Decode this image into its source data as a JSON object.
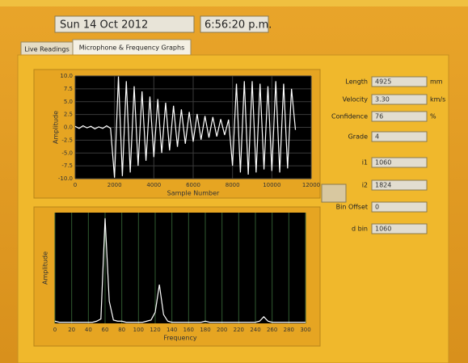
{
  "header": {
    "date": "Sun 14 Oct 2012",
    "time": "6:56:20 p.m."
  },
  "tabs": [
    "Live Readings",
    "Microphone & Frequency Graphs"
  ],
  "fields": [
    {
      "label": "Length",
      "value": "4925",
      "unit": "mm"
    },
    {
      "label": "Velocity",
      "value": "3.30",
      "unit": "km/s"
    },
    {
      "label": "Confidence",
      "value": "76",
      "unit": "%"
    },
    {
      "label": "Grade",
      "value": "4"
    },
    {
      "label": "i1",
      "value": "1060"
    },
    {
      "label": "i2",
      "value": "1824"
    },
    {
      "label": "Bin Offset",
      "value": "0"
    },
    {
      "label": "d bin",
      "value": "1060"
    }
  ],
  "chart_data": [
    {
      "type": "line",
      "x_label": "Sample Number",
      "y_label": "Amplitude",
      "color": "#ffffff",
      "grid_color": "#3a3a3a",
      "xlim": [
        0,
        12000
      ],
      "ylim": [
        -10,
        10
      ],
      "xticks": [
        0,
        2000,
        4000,
        6000,
        8000,
        10000,
        12000
      ],
      "yticks": [
        {
          "value": 10,
          "label": "10.0"
        },
        7.5,
        {
          "value": 5,
          "label": "5.0"
        },
        2.5,
        {
          "value": 0,
          "label": "0.0"
        },
        -2.5,
        {
          "value": -5,
          "label": "-5.0"
        },
        -7.5,
        {
          "value": -10,
          "label": "-10.0"
        }
      ],
      "x": [
        0,
        200,
        400,
        600,
        800,
        1000,
        1200,
        1400,
        1600,
        1800,
        2000,
        2200,
        2400,
        2600,
        2800,
        3000,
        3200,
        3400,
        3600,
        3800,
        4000,
        4200,
        4400,
        4600,
        4800,
        5000,
        5200,
        5400,
        5600,
        5800,
        6000,
        6200,
        6400,
        6600,
        6800,
        7000,
        7200,
        7400,
        7600,
        7800,
        8000,
        8200,
        8400,
        8600,
        8800,
        9000,
        9200,
        9400,
        9600,
        9800,
        10000,
        10200,
        10400,
        10600,
        10800,
        11000,
        11200
      ],
      "values": [
        0.2,
        -0.2,
        0.3,
        -0.1,
        0.2,
        -0.3,
        0.1,
        -0.2,
        0.3,
        -0.2,
        -9.8,
        9.9,
        -9.5,
        9.0,
        -8.8,
        8.0,
        -7.5,
        7.0,
        -6.5,
        6.0,
        -5.8,
        5.5,
        -5.0,
        4.8,
        -4.5,
        4.2,
        -3.8,
        3.5,
        -3.2,
        3.0,
        -2.8,
        2.6,
        -2.4,
        2.2,
        -2.0,
        2.0,
        -1.8,
        1.6,
        -1.5,
        1.5,
        -7.5,
        8.5,
        -8.8,
        9.0,
        -9.2,
        9.0,
        -8.8,
        8.5,
        -8.2,
        8.0,
        -8.5,
        9.0,
        -8.8,
        8.5,
        -8.0,
        7.5,
        -0.5
      ]
    },
    {
      "type": "line",
      "x_label": "Frequency",
      "y_label": "Amplitude",
      "color": "#ffffff",
      "grid_color": "#2f5a2f",
      "xlim": [
        0,
        300
      ],
      "ylim": [
        0,
        100
      ],
      "xticks": [
        0,
        20,
        40,
        60,
        80,
        100,
        120,
        140,
        160,
        180,
        200,
        220,
        240,
        260,
        280,
        300
      ],
      "x": [
        0,
        5,
        10,
        15,
        20,
        25,
        30,
        35,
        40,
        45,
        50,
        55,
        60,
        65,
        70,
        75,
        80,
        85,
        90,
        95,
        100,
        105,
        110,
        115,
        120,
        125,
        130,
        135,
        140,
        145,
        150,
        155,
        160,
        165,
        170,
        175,
        180,
        185,
        190,
        195,
        200,
        205,
        210,
        215,
        220,
        225,
        230,
        235,
        240,
        245,
        250,
        255,
        260,
        265,
        270,
        275,
        280,
        285,
        290,
        295,
        300
      ],
      "values": [
        2,
        1,
        1,
        1,
        1,
        1,
        1,
        1,
        1,
        1,
        2,
        4,
        95,
        20,
        3,
        2,
        2,
        1,
        1,
        1,
        1,
        1,
        2,
        3,
        10,
        35,
        8,
        2,
        1,
        1,
        1,
        1,
        1,
        1,
        1,
        1,
        2,
        1,
        1,
        1,
        1,
        1,
        1,
        1,
        1,
        1,
        1,
        1,
        1,
        2,
        6,
        2,
        1,
        1,
        1,
        1,
        1,
        1,
        1,
        1,
        1
      ]
    }
  ]
}
